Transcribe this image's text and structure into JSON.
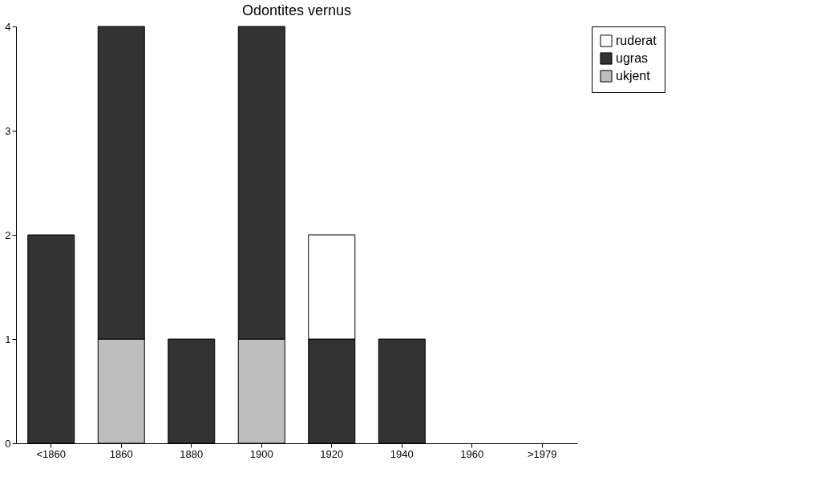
{
  "chart_data": {
    "type": "bar",
    "title": "Odontites vernus",
    "stacked": true,
    "categories": [
      "<1860",
      "1860",
      "1880",
      "1900",
      "1920",
      "1940",
      "1960",
      ">1979"
    ],
    "series": [
      {
        "name": "ukjent",
        "color": "#bdbdbd",
        "values": [
          null,
          1,
          null,
          1,
          null,
          null,
          null,
          null
        ]
      },
      {
        "name": "ugras",
        "color": "#333333",
        "values": [
          2,
          3,
          1,
          3,
          1,
          1,
          null,
          null
        ]
      },
      {
        "name": "ruderat",
        "color": "#ffffff",
        "values": [
          null,
          null,
          null,
          null,
          1,
          null,
          null,
          null
        ]
      }
    ],
    "ylim": [
      0,
      4
    ],
    "yticks": [
      0,
      1,
      2,
      3,
      4
    ],
    "grid": false,
    "legend": "right"
  }
}
